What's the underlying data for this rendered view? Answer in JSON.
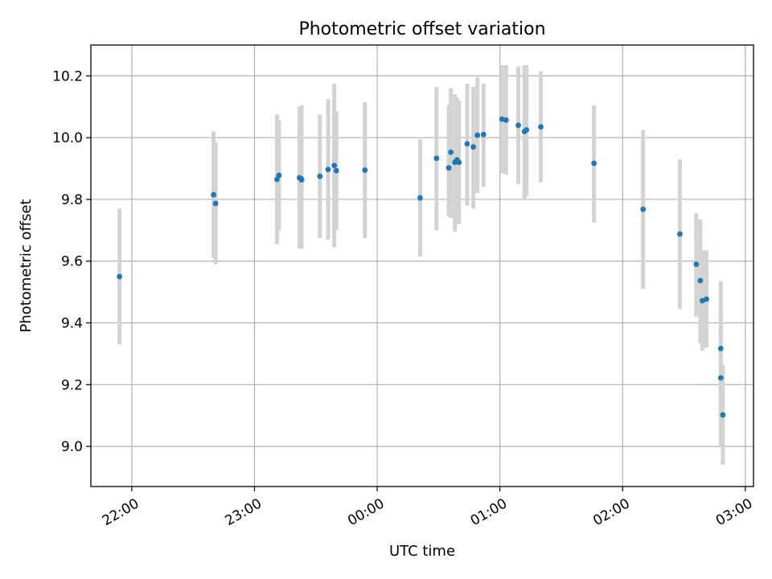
{
  "chart_data": {
    "type": "scatter",
    "title": "Photometric offset variation",
    "xlabel": "UTC time",
    "ylabel": "Photometric offset",
    "x_is_time": true,
    "x_reference_date": "2000-01-01",
    "xlim": [
      "21:40",
      "03:04+1d"
    ],
    "ylim": [
      8.87,
      10.3
    ],
    "x_ticks": [
      {
        "time": "22:00",
        "label": "22:00"
      },
      {
        "time": "23:00",
        "label": "23:00"
      },
      {
        "time": "00:00+1d",
        "label": "00:00"
      },
      {
        "time": "01:00+1d",
        "label": "01:00"
      },
      {
        "time": "02:00+1d",
        "label": "02:00"
      },
      {
        "time": "03:00+1d",
        "label": "03:00"
      }
    ],
    "y_ticks": [
      9.0,
      9.2,
      9.4,
      9.6,
      9.8,
      10.0,
      10.2
    ],
    "grid": true,
    "point_color": "#1f77b4",
    "errorbar_color": "#d3d3d3",
    "points": [
      {
        "x": "21:54",
        "y": 9.55,
        "ylo": 9.33,
        "yhi": 9.77
      },
      {
        "x": "22:40",
        "y": 9.815,
        "ylo": 9.61,
        "yhi": 10.02
      },
      {
        "x": "22:41",
        "y": 9.787,
        "ylo": 9.59,
        "yhi": 9.985
      },
      {
        "x": "23:11",
        "y": 9.865,
        "ylo": 9.655,
        "yhi": 10.075
      },
      {
        "x": "23:12",
        "y": 9.878,
        "ylo": 9.7,
        "yhi": 10.055
      },
      {
        "x": "23:22",
        "y": 9.87,
        "ylo": 9.64,
        "yhi": 10.1
      },
      {
        "x": "23:23",
        "y": 9.866,
        "ylo": 9.64,
        "yhi": 10.105
      },
      {
        "x": "23:23",
        "y": 9.863,
        "ylo": 9.64,
        "yhi": 10.085
      },
      {
        "x": "23:32",
        "y": 9.875,
        "ylo": 9.675,
        "yhi": 10.075
      },
      {
        "x": "23:36",
        "y": 9.897,
        "ylo": 9.67,
        "yhi": 10.125
      },
      {
        "x": "23:39",
        "y": 9.91,
        "ylo": 9.645,
        "yhi": 10.175
      },
      {
        "x": "23:40",
        "y": 9.893,
        "ylo": 9.7,
        "yhi": 10.085
      },
      {
        "x": "23:54",
        "y": 9.895,
        "ylo": 9.675,
        "yhi": 10.115
      },
      {
        "x": "00:21+1d",
        "y": 9.805,
        "ylo": 9.615,
        "yhi": 9.995
      },
      {
        "x": "00:29+1d",
        "y": 9.933,
        "ylo": 9.7,
        "yhi": 10.165
      },
      {
        "x": "00:35+1d",
        "y": 9.902,
        "ylo": 9.745,
        "yhi": 10.105
      },
      {
        "x": "00:36+1d",
        "y": 9.953,
        "ylo": 9.74,
        "yhi": 10.16
      },
      {
        "x": "00:38+1d",
        "y": 9.92,
        "ylo": 9.695,
        "yhi": 10.14
      },
      {
        "x": "00:39+1d",
        "y": 9.928,
        "ylo": 9.72,
        "yhi": 10.13
      },
      {
        "x": "00:40+1d",
        "y": 9.92,
        "ylo": 9.72,
        "yhi": 10.12
      },
      {
        "x": "00:44+1d",
        "y": 9.98,
        "ylo": 9.78,
        "yhi": 10.175
      },
      {
        "x": "00:47+1d",
        "y": 9.97,
        "ylo": 9.77,
        "yhi": 10.165
      },
      {
        "x": "00:49+1d",
        "y": 10.008,
        "ylo": 9.82,
        "yhi": 10.195
      },
      {
        "x": "00:52+1d",
        "y": 10.01,
        "ylo": 9.84,
        "yhi": 10.175
      },
      {
        "x": "01:01+1d",
        "y": 10.06,
        "ylo": 9.885,
        "yhi": 10.235
      },
      {
        "x": "01:03+1d",
        "y": 10.057,
        "ylo": 9.88,
        "yhi": 10.235
      },
      {
        "x": "01:09+1d",
        "y": 10.04,
        "ylo": 9.85,
        "yhi": 10.23
      },
      {
        "x": "01:12+1d",
        "y": 10.02,
        "ylo": 9.8,
        "yhi": 10.235
      },
      {
        "x": "01:13+1d",
        "y": 10.025,
        "ylo": 9.81,
        "yhi": 10.235
      },
      {
        "x": "01:20+1d",
        "y": 10.035,
        "ylo": 9.855,
        "yhi": 10.215
      },
      {
        "x": "01:46+1d",
        "y": 9.917,
        "ylo": 9.725,
        "yhi": 10.105
      },
      {
        "x": "02:10+1d",
        "y": 9.768,
        "ylo": 9.51,
        "yhi": 10.025
      },
      {
        "x": "02:28+1d",
        "y": 9.688,
        "ylo": 9.445,
        "yhi": 9.93
      },
      {
        "x": "02:36+1d",
        "y": 9.59,
        "ylo": 9.42,
        "yhi": 9.755
      },
      {
        "x": "02:38+1d",
        "y": 9.537,
        "ylo": 9.335,
        "yhi": 9.735
      },
      {
        "x": "02:39+1d",
        "y": 9.472,
        "ylo": 9.31,
        "yhi": 9.635
      },
      {
        "x": "02:41+1d",
        "y": 9.477,
        "ylo": 9.32,
        "yhi": 9.635
      },
      {
        "x": "02:48+1d",
        "y": 9.317,
        "ylo": 9.1,
        "yhi": 9.535
      },
      {
        "x": "02:48+1d",
        "y": 9.222,
        "ylo": 9.0,
        "yhi": 9.445
      },
      {
        "x": "02:49+1d",
        "y": 9.102,
        "ylo": 8.94,
        "yhi": 9.265
      }
    ]
  }
}
